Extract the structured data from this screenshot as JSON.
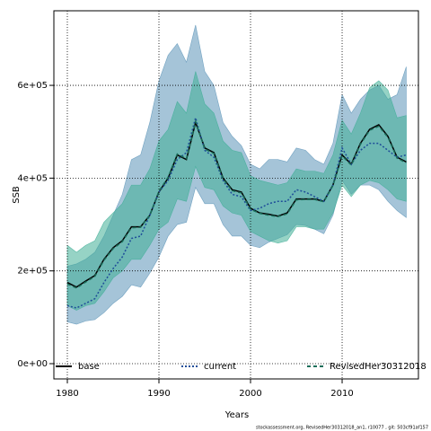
{
  "chart_data": {
    "type": "line",
    "xlabel": "Years",
    "ylabel": "SSB",
    "footnote": "stockassessment.org, RevisedHer30312018_an1, r10077 , git: 503cf91af157",
    "x": [
      1980,
      1981,
      1982,
      1983,
      1984,
      1985,
      1986,
      1987,
      1988,
      1989,
      1990,
      1991,
      1992,
      1993,
      1994,
      1995,
      1996,
      1997,
      1998,
      1999,
      2000,
      2001,
      2002,
      2003,
      2004,
      2005,
      2006,
      2007,
      2008,
      2009,
      2010,
      2011,
      2012,
      2013,
      2014,
      2015,
      2016,
      2017
    ],
    "xlim": [
      1978.53,
      2018.33
    ],
    "xticks": [
      1980,
      1990,
      2000,
      2010
    ],
    "ylim": [
      -32900,
      760800
    ],
    "yticks": [
      {
        "value": 0,
        "label": "0e+00"
      },
      {
        "value": 200000,
        "label": "2e+05"
      },
      {
        "value": 400000,
        "label": "4e+05"
      },
      {
        "value": 600000,
        "label": "6e+05"
      }
    ],
    "grid": true,
    "bands": [
      {
        "color": "#5b93b8",
        "upper": [
          210000,
          215000,
          225000,
          240000,
          275000,
          320000,
          365000,
          440000,
          450000,
          520000,
          610000,
          665000,
          690000,
          650000,
          730000,
          630000,
          600000,
          520000,
          490000,
          470000,
          430000,
          420000,
          440000,
          440000,
          435000,
          465000,
          460000,
          440000,
          430000,
          475000,
          580000,
          540000,
          570000,
          590000,
          600000,
          570000,
          580000,
          640000
        ],
        "lower": [
          90000,
          85000,
          92000,
          95000,
          110000,
          130000,
          145000,
          170000,
          165000,
          195000,
          230000,
          275000,
          300000,
          305000,
          380000,
          345000,
          345000,
          300000,
          275000,
          275000,
          255000,
          250000,
          262000,
          270000,
          278000,
          300000,
          298000,
          290000,
          280000,
          320000,
          395000,
          365000,
          385000,
          385000,
          375000,
          350000,
          330000,
          315000
        ]
      },
      {
        "color": "#3fae96",
        "upper": [
          255000,
          240000,
          255000,
          265000,
          305000,
          325000,
          345000,
          385000,
          385000,
          420000,
          480000,
          505000,
          565000,
          540000,
          630000,
          560000,
          540000,
          480000,
          460000,
          455000,
          405000,
          395000,
          390000,
          385000,
          390000,
          420000,
          415000,
          415000,
          410000,
          450000,
          525000,
          495000,
          540000,
          595000,
          610000,
          590000,
          530000,
          535000
        ],
        "lower": [
          125000,
          115000,
          125000,
          130000,
          155000,
          185000,
          200000,
          225000,
          225000,
          255000,
          290000,
          305000,
          355000,
          350000,
          425000,
          380000,
          375000,
          340000,
          325000,
          320000,
          285000,
          275000,
          265000,
          260000,
          265000,
          295000,
          295000,
          290000,
          290000,
          325000,
          385000,
          360000,
          385000,
          395000,
          390000,
          375000,
          355000,
          350000
        ]
      }
    ],
    "series": [
      {
        "name": "base",
        "color": "#000000",
        "dash": "solid",
        "values": [
          175000,
          165000,
          178000,
          190000,
          225000,
          250000,
          265000,
          295000,
          295000,
          320000,
          370000,
          400000,
          450000,
          440000,
          520000,
          465000,
          455000,
          400000,
          375000,
          370000,
          335000,
          325000,
          322000,
          318000,
          325000,
          355000,
          355000,
          355000,
          350000,
          385000,
          450000,
          430000,
          475000,
          505000,
          515000,
          490000,
          445000,
          435000
        ]
      },
      {
        "name": "current",
        "color": "#1f4e99",
        "dash": "dotted",
        "values": [
          125000,
          120000,
          130000,
          140000,
          175000,
          205000,
          230000,
          270000,
          275000,
          320000,
          370000,
          395000,
          440000,
          455000,
          530000,
          460000,
          445000,
          395000,
          365000,
          360000,
          330000,
          335000,
          345000,
          350000,
          350000,
          375000,
          370000,
          360000,
          350000,
          385000,
          465000,
          430000,
          460000,
          475000,
          475000,
          460000,
          445000,
          450000
        ]
      },
      {
        "name": "RevisedHer30312018",
        "color": "#1a6e5a",
        "dash": "dashed",
        "values": [
          172000,
          163000,
          176000,
          188000,
          223000,
          248000,
          263000,
          293000,
          294000,
          320000,
          372000,
          402000,
          452000,
          442000,
          522000,
          463000,
          453000,
          398000,
          373000,
          368000,
          333000,
          324000,
          320000,
          317000,
          323000,
          353000,
          354000,
          354000,
          349000,
          384000,
          448000,
          428000,
          473000,
          503000,
          512000,
          488000,
          443000,
          433000
        ]
      }
    ]
  }
}
